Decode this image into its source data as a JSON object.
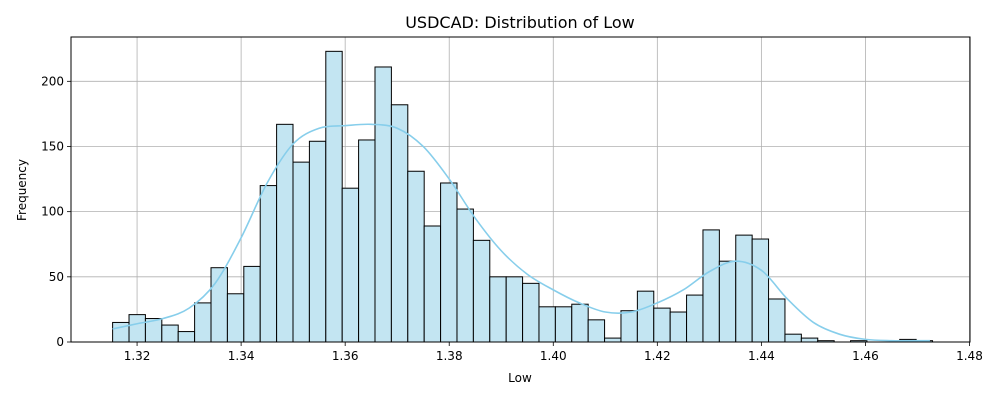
{
  "chart_data": {
    "type": "histogram",
    "title": "USDCAD: Distribution of Low",
    "xlabel": "Low",
    "ylabel": "Frequency",
    "xlim": [
      1.3073,
      1.4801
    ],
    "ylim": [
      0,
      234
    ],
    "x_ticks": [
      1.32,
      1.34,
      1.36,
      1.38,
      1.4,
      1.42,
      1.44,
      1.46,
      1.48
    ],
    "x_tick_labels": [
      "1.32",
      "1.34",
      "1.36",
      "1.38",
      "1.40",
      "1.42",
      "1.44",
      "1.46",
      "1.48"
    ],
    "y_ticks": [
      0,
      50,
      100,
      150,
      200
    ],
    "y_tick_labels": [
      "0",
      "50",
      "100",
      "150",
      "200"
    ],
    "grid": true,
    "bar_fill": "#c3e5f2",
    "bar_edge": "#000000",
    "kde_color": "#87ceeb",
    "bins": {
      "start": 1.3153,
      "width": 0.003152,
      "counts": [
        15,
        21,
        18,
        13,
        8,
        30,
        57,
        37,
        58,
        120,
        167,
        138,
        154,
        223,
        118,
        155,
        211,
        182,
        131,
        89,
        122,
        102,
        78,
        50,
        50,
        45,
        27,
        27,
        29,
        17,
        3,
        24,
        39,
        26,
        23,
        36,
        86,
        62,
        82,
        79,
        33,
        6,
        3,
        1,
        0,
        1,
        0,
        0,
        2,
        1
      ]
    },
    "kde": {
      "x": [
        1.3153,
        1.32,
        1.325,
        1.33,
        1.335,
        1.34,
        1.345,
        1.35,
        1.355,
        1.36,
        1.365,
        1.37,
        1.375,
        1.38,
        1.385,
        1.39,
        1.395,
        1.4,
        1.405,
        1.41,
        1.415,
        1.42,
        1.425,
        1.43,
        1.435,
        1.44,
        1.445,
        1.45,
        1.455,
        1.46,
        1.465,
        1.47,
        1.4724
      ],
      "y": [
        10,
        14,
        18,
        26,
        45,
        80,
        122,
        152,
        164,
        166,
        167,
        164,
        150,
        125,
        95,
        70,
        52,
        40,
        30,
        23,
        23,
        30,
        40,
        54,
        62,
        55,
        33,
        15,
        6,
        2,
        1,
        1,
        1
      ]
    }
  }
}
